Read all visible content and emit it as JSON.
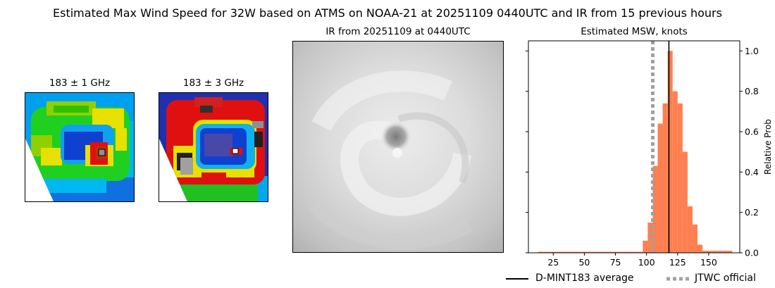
{
  "figure": {
    "suptitle": "Estimated Max Wind Speed for 32W based on ATMS on NOAA-21 at 20251109 0440UTC and IR from 15 previous hours"
  },
  "panels": {
    "mw1": {
      "title": "183 ± 1 GHz"
    },
    "mw2": {
      "title": "183 ± 3 GHz"
    },
    "ir": {
      "title": "IR from 20251109 at 0440UTC"
    }
  },
  "chart_data": {
    "type": "bar",
    "title": "Estimated MSW, knots",
    "xlabel": "",
    "ylabel": "Relative Prob",
    "xlim": [
      5,
      175
    ],
    "ylim": [
      0,
      1.05
    ],
    "xticks": [
      25,
      50,
      75,
      100,
      125,
      150
    ],
    "yticks": [
      0.0,
      0.2,
      0.4,
      0.6,
      0.8,
      1.0
    ],
    "y_axis_side": "right",
    "bar_color": "#ff7f50",
    "bin_width": 4,
    "bins": [
      {
        "x": 15,
        "y": 0.005
      },
      {
        "x": 19,
        "y": 0.005
      },
      {
        "x": 23,
        "y": 0.005
      },
      {
        "x": 27,
        "y": 0.005
      },
      {
        "x": 31,
        "y": 0.005
      },
      {
        "x": 35,
        "y": 0.005
      },
      {
        "x": 39,
        "y": 0.005
      },
      {
        "x": 43,
        "y": 0.005
      },
      {
        "x": 47,
        "y": 0.005
      },
      {
        "x": 51,
        "y": 0.005
      },
      {
        "x": 55,
        "y": 0.005
      },
      {
        "x": 59,
        "y": 0.005
      },
      {
        "x": 63,
        "y": 0.005
      },
      {
        "x": 67,
        "y": 0.005
      },
      {
        "x": 71,
        "y": 0.005
      },
      {
        "x": 75,
        "y": 0.005
      },
      {
        "x": 79,
        "y": 0.005
      },
      {
        "x": 83,
        "y": 0.005
      },
      {
        "x": 87,
        "y": 0.005
      },
      {
        "x": 91,
        "y": 0.005
      },
      {
        "x": 95,
        "y": 0.005
      },
      {
        "x": 99,
        "y": 0.06
      },
      {
        "x": 103,
        "y": 0.15
      },
      {
        "x": 107,
        "y": 0.43
      },
      {
        "x": 111,
        "y": 0.64
      },
      {
        "x": 115,
        "y": 0.74
      },
      {
        "x": 119,
        "y": 1.0
      },
      {
        "x": 123,
        "y": 0.8
      },
      {
        "x": 127,
        "y": 0.74
      },
      {
        "x": 131,
        "y": 0.5
      },
      {
        "x": 135,
        "y": 0.23
      },
      {
        "x": 139,
        "y": 0.14
      },
      {
        "x": 143,
        "y": 0.04
      },
      {
        "x": 147,
        "y": 0.01
      },
      {
        "x": 151,
        "y": 0.01
      },
      {
        "x": 155,
        "y": 0.01
      },
      {
        "x": 159,
        "y": 0.01
      },
      {
        "x": 163,
        "y": 0.01
      },
      {
        "x": 167,
        "y": 0.01
      }
    ],
    "lines": [
      {
        "name": "D-MINT183 average",
        "x": 118,
        "color": "#000000",
        "style": "solid"
      },
      {
        "name": "JTWC official",
        "x": 105,
        "color": "#a0a0a0",
        "style": "dotted"
      }
    ],
    "legend": {
      "placement": "below"
    }
  }
}
